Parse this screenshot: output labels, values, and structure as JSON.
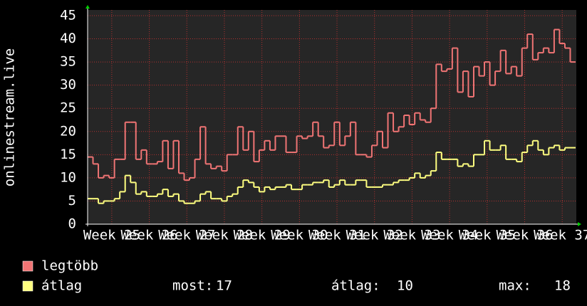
{
  "chart_data": {
    "type": "step",
    "ylabel": "onlinestream.live",
    "ylim": [
      0,
      45
    ],
    "yticks": [
      0,
      5,
      10,
      15,
      20,
      25,
      30,
      35,
      40,
      45
    ],
    "xlim": [
      0,
      91
    ],
    "xticks": [
      {
        "value": 4.5,
        "label": "Week 25"
      },
      {
        "value": 11.5,
        "label": "Week 26"
      },
      {
        "value": 18.5,
        "label": "Week 27"
      },
      {
        "value": 25.5,
        "label": "Week 28"
      },
      {
        "value": 32.5,
        "label": "Week 29"
      },
      {
        "value": 39.5,
        "label": "Week 30"
      },
      {
        "value": 46.5,
        "label": "Week 31"
      },
      {
        "value": 53.5,
        "label": "Week 32"
      },
      {
        "value": 60.5,
        "label": "Week 33"
      },
      {
        "value": 67.5,
        "label": "Week 34"
      },
      {
        "value": 74.5,
        "label": "Week 35"
      },
      {
        "value": 81.5,
        "label": "Week 36"
      },
      {
        "value": 88.5,
        "label": "Week 37"
      }
    ],
    "grid": true,
    "series": [
      {
        "name": "legtöbb",
        "color": "#f07474",
        "values": [
          14.5,
          13,
          10,
          10.5,
          10,
          14,
          14,
          22,
          22,
          14,
          16,
          13,
          13,
          13.5,
          18,
          12,
          18,
          11,
          9.5,
          10,
          14,
          21,
          13,
          12,
          12.5,
          11.5,
          15,
          15,
          21,
          16,
          20,
          13.5,
          16,
          18,
          16,
          19,
          19,
          15.5,
          15.5,
          19,
          18.5,
          19,
          22,
          19,
          16.5,
          17,
          22,
          17,
          19,
          22,
          15,
          15,
          14.5,
          17,
          20,
          16.5,
          24,
          20,
          21,
          23.5,
          21.5,
          24,
          22.5,
          22,
          25,
          34.5,
          33,
          33.5,
          38,
          28.5,
          33,
          27.5,
          34,
          32,
          35,
          30,
          33,
          37.5,
          32.5,
          34,
          32,
          38,
          41,
          35.5,
          37,
          38,
          37,
          42,
          39,
          38,
          35
        ]
      },
      {
        "name": "átlag",
        "color": "#ffff80",
        "values": [
          5.5,
          5.5,
          4.5,
          5,
          5,
          5.5,
          7,
          10.5,
          9,
          6.5,
          7,
          6,
          6,
          6.5,
          7.5,
          6,
          6.5,
          5,
          4.5,
          4.5,
          5,
          6.5,
          7,
          5.5,
          5.5,
          5,
          6,
          6.5,
          8,
          9.5,
          9,
          8,
          7,
          8,
          7.5,
          8,
          8,
          8.5,
          7.5,
          7.5,
          8.5,
          8.5,
          9,
          9,
          9.5,
          8,
          8.5,
          9.5,
          8.5,
          8.5,
          9.5,
          9.5,
          8,
          8,
          8,
          8.5,
          8.5,
          9,
          9.5,
          9.5,
          10,
          11,
          10,
          10.5,
          11.5,
          15.5,
          14,
          14,
          14,
          12.5,
          13,
          12.5,
          15,
          15,
          18,
          16,
          16,
          17,
          14,
          14,
          13.5,
          15.5,
          17,
          18,
          16,
          15,
          16.5,
          17,
          16,
          16.5,
          16.5
        ]
      }
    ],
    "stats": [
      {
        "label": "most:",
        "value": 17
      },
      {
        "label": "átlag:",
        "value": 10
      },
      {
        "label": "max:",
        "value": 18
      }
    ]
  }
}
